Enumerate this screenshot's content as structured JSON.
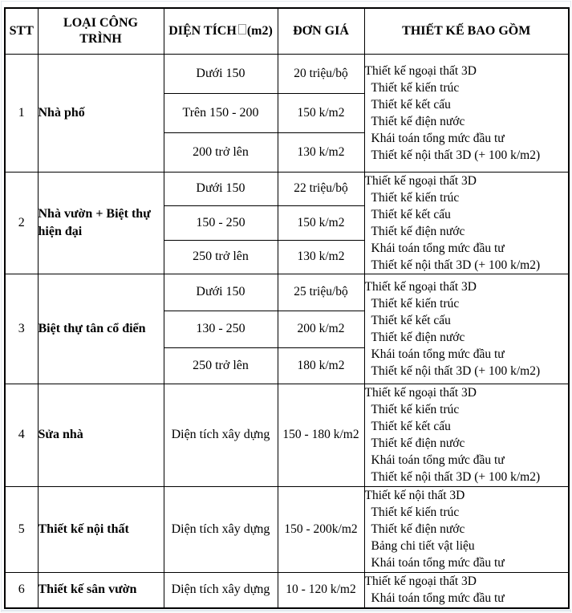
{
  "table": {
    "headers": {
      "stt": "STT",
      "type": "LOẠI CÔNG TRÌNH",
      "area_prefix": "DIỆN TÍCH",
      "area_suffix": "(m2)",
      "price": "ĐƠN GIÁ",
      "includes": "THIẾT KẾ BAO GỒM"
    },
    "sections": [
      {
        "stt": "1",
        "type": "Nhà phố",
        "tiers": [
          {
            "area": "Dưới 150",
            "price": "20 triệu/bộ"
          },
          {
            "area": "Trên 150 - 200",
            "price": "150 k/m2"
          },
          {
            "area": "200 trở lên",
            "price": "130 k/m2"
          }
        ],
        "includes": [
          "Thiết kế ngoại thất 3D",
          "Thiết kế kiến trúc",
          "Thiết kế kết cấu",
          "Thiết kế điện nước",
          "Khái toán tổng mức đầu tư",
          "Thiết kế nội thất 3D (+ 100 k/m2)"
        ]
      },
      {
        "stt": "2",
        "type": "Nhà vườn + Biệt thự hiện đại",
        "tiers": [
          {
            "area": "Dưới 150",
            "price": "22 triệu/bộ"
          },
          {
            "area": "150 - 250",
            "price": "150 k/m2"
          },
          {
            "area": "250 trở lên",
            "price": "130 k/m2"
          }
        ],
        "includes": [
          "Thiết kế ngoại thất 3D",
          "Thiết kế kiến trúc",
          "Thiết kế kết cấu",
          "Thiết kế điện nước",
          "Khái toán tổng mức đầu tư",
          "Thiết kế nội thất 3D (+ 100 k/m2)"
        ]
      },
      {
        "stt": "3",
        "type": "Biệt thự tân cổ điển",
        "tiers": [
          {
            "area": "Dưới 150",
            "price": "25 triệu/bộ"
          },
          {
            "area": "130 - 250",
            "price": "200 k/m2"
          },
          {
            "area": "250 trở lên",
            "price": "180 k/m2"
          }
        ],
        "includes": [
          "Thiết kế ngoại thất 3D",
          "Thiết kế kiến trúc",
          "Thiết kế kết cấu",
          "Thiết kế điện nước",
          "Khái toán tổng mức đầu tư",
          "Thiết kế nội thất 3D (+ 100 k/m2)"
        ]
      },
      {
        "stt": "4",
        "type": "Sửa nhà",
        "tiers": [
          {
            "area": "Diện tích xây dựng",
            "price": "150 - 180 k/m2"
          }
        ],
        "includes": [
          "Thiết kế ngoại thất 3D",
          "Thiết kế kiến trúc",
          "Thiết kế kết cấu",
          "Thiết kế điện nước",
          "Khái toán tổng mức đầu tư",
          "Thiết kế nội thất 3D (+ 100 k/m2)"
        ]
      },
      {
        "stt": "5",
        "type": "Thiết kế nội thất",
        "tiers": [
          {
            "area": "Diện tích xây dựng",
            "price": "150 - 200k/m2"
          }
        ],
        "includes": [
          "Thiết kế nội thất 3D",
          "Thiết kế kiến trúc",
          "Thiết kế điện nước",
          "Bảng chi tiết vật liệu",
          "Khái toán tổng mức đầu tư"
        ]
      },
      {
        "stt": "6",
        "type": "Thiết kế sân vườn",
        "tiers": [
          {
            "area": "Diện tích xây dựng",
            "price": "10 - 120 k/m2"
          }
        ],
        "includes": [
          "Thiết kế ngoại thất 3D",
          "Khái toán tổng mức đầu tư"
        ]
      }
    ]
  }
}
